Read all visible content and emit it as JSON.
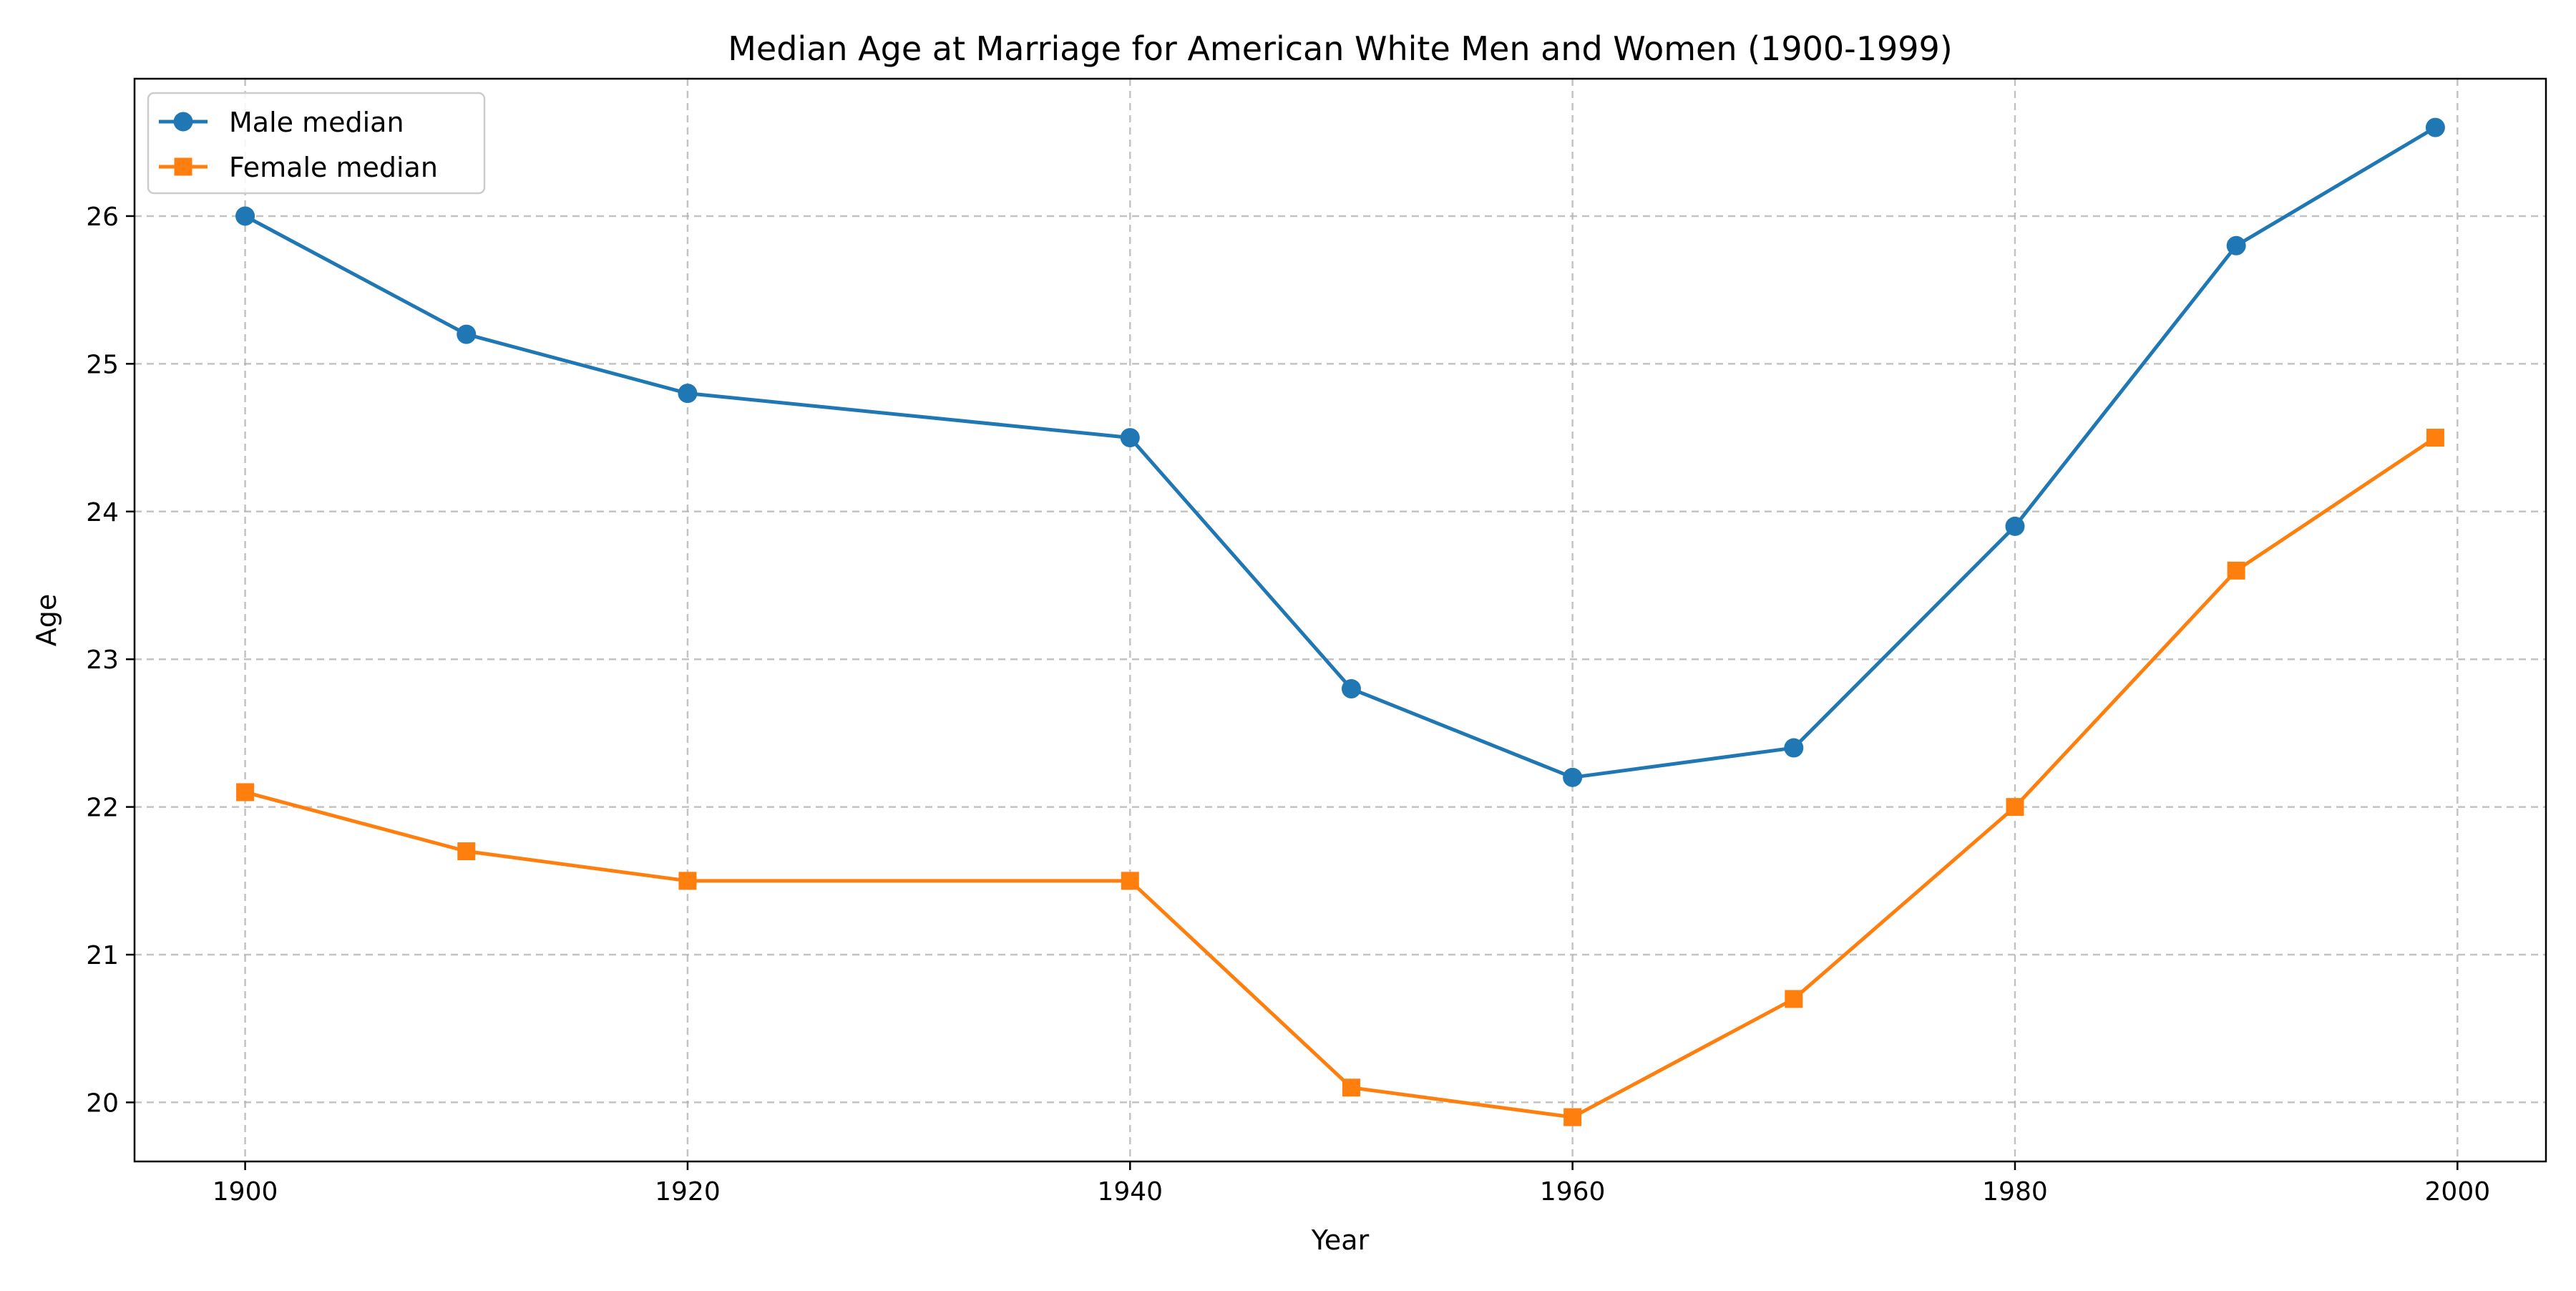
{
  "chart_data": {
    "type": "line",
    "title": "Median Age at Marriage for American White Men and Women (1900-1999)",
    "xlabel": "Year",
    "ylabel": "Age",
    "xlim": [
      1895,
      2004
    ],
    "ylim": [
      19.6,
      26.93
    ],
    "xticks": [
      1900,
      1920,
      1940,
      1960,
      1980,
      2000
    ],
    "yticks": [
      20,
      21,
      22,
      23,
      24,
      25,
      26
    ],
    "grid": true,
    "legend_position": "top-left",
    "x": [
      1900,
      1910,
      1920,
      1940,
      1950,
      1960,
      1970,
      1980,
      1990,
      1999
    ],
    "series": [
      {
        "name": "Male median",
        "values": [
          26.0,
          25.2,
          24.8,
          24.5,
          22.8,
          22.2,
          22.4,
          23.9,
          25.8,
          26.6
        ],
        "color": "#1f77b4",
        "marker": "circle"
      },
      {
        "name": "Female median",
        "values": [
          22.1,
          21.7,
          21.5,
          21.5,
          20.1,
          19.9,
          20.7,
          22.0,
          23.6,
          24.5
        ],
        "color": "#ff7f0e",
        "marker": "square"
      }
    ]
  }
}
